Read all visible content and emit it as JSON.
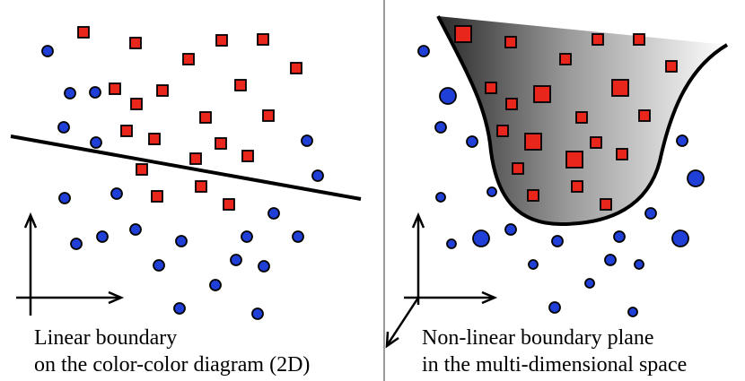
{
  "panels": {
    "left": {
      "caption_line1": "Linear boundary",
      "caption_line2": "on the color-color diagram (2D)"
    },
    "right": {
      "caption_line1": "Non-linear boundary plane",
      "caption_line2": "in the multi-dimensional space"
    }
  },
  "colors": {
    "square_fill": "#e8261b",
    "circle_fill": "#1f3fd6",
    "outline": "#000000",
    "divider": "#999999",
    "surface_dark": "#1a1a1a",
    "surface_light": "#ffffff"
  }
}
